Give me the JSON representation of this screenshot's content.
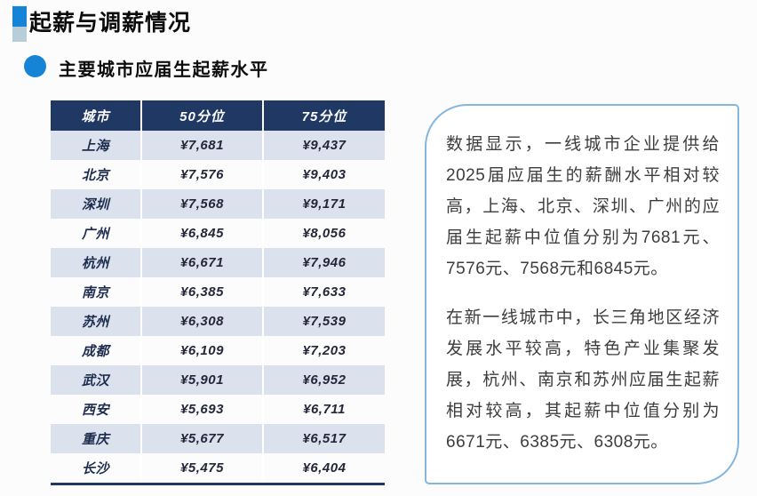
{
  "page": {
    "title": "起薪与调薪情况",
    "section_title": "主要城市应届生起薪水平"
  },
  "table": {
    "columns": [
      "城市",
      "50分位",
      "75分位"
    ],
    "rows": [
      {
        "city": "上海",
        "p50": "¥7,681",
        "p75": "¥9,437"
      },
      {
        "city": "北京",
        "p50": "¥7,576",
        "p75": "¥9,403"
      },
      {
        "city": "深圳",
        "p50": "¥7,568",
        "p75": "¥9,171"
      },
      {
        "city": "广州",
        "p50": "¥6,845",
        "p75": "¥8,056"
      },
      {
        "city": "杭州",
        "p50": "¥6,671",
        "p75": "¥7,946"
      },
      {
        "city": "南京",
        "p50": "¥6,385",
        "p75": "¥7,633"
      },
      {
        "city": "苏州",
        "p50": "¥6,308",
        "p75": "¥7,539"
      },
      {
        "city": "成都",
        "p50": "¥6,109",
        "p75": "¥7,203"
      },
      {
        "city": "武汉",
        "p50": "¥5,901",
        "p75": "¥6,952"
      },
      {
        "city": "西安",
        "p50": "¥5,693",
        "p75": "¥6,711"
      },
      {
        "city": "重庆",
        "p50": "¥5,677",
        "p75": "¥6,517"
      },
      {
        "city": "长沙",
        "p50": "¥5,475",
        "p75": "¥6,404"
      }
    ]
  },
  "callout": {
    "paragraphs": [
      "数据显示，一线城市企业提供给2025届应届生的薪酬水平相对较高，上海、北京、深圳、广州的应届生起薪中位值分别为7681元、7576元、7568元和6845元。",
      "在新一线城市中，长三角地区经济发展水平较高，特色产业集聚发展，杭州、南京和苏州应届生起薪相对较高，其起薪中位值分别为6671元、6385元、6308元。"
    ]
  },
  "colors": {
    "header_bg": "#1f3864",
    "row_alt_bg": "#dbe2ee",
    "accent_blue": "#1583d6",
    "marker_light": "#b7cdd9",
    "callout_border": "#85b6de",
    "table_bottom_border": "#1f3864"
  }
}
